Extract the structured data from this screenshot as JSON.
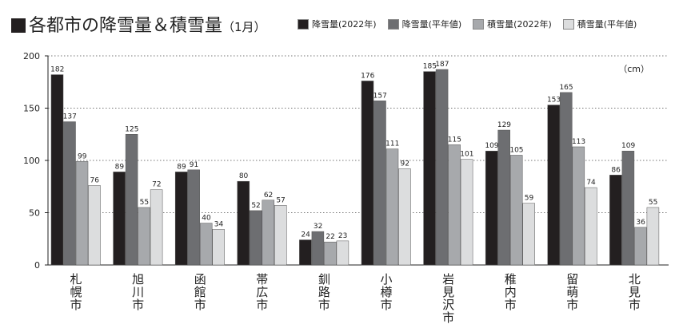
{
  "chart_data": {
    "type": "bar",
    "title": "各都市の降雪量＆積雪量",
    "subtitle": "（1月）",
    "unit": "（cm）",
    "ylim": [
      0,
      200
    ],
    "yticks": [
      0,
      50,
      100,
      150,
      200
    ],
    "grid": true,
    "legend_position": "top-right",
    "categories": [
      "札幌市",
      "旭川市",
      "函館市",
      "帯広市",
      "釧路市",
      "小樽市",
      "岩見沢市",
      "稚内市",
      "留萌市",
      "北見市"
    ],
    "series": [
      {
        "name": "降雪量(2022年)",
        "color": "#231f20",
        "values": [
          182,
          89,
          89,
          80,
          24,
          176,
          185,
          109,
          153,
          86
        ]
      },
      {
        "name": "降雪量(平年値)",
        "color": "#6d6e71",
        "values": [
          137,
          125,
          91,
          52,
          32,
          157,
          187,
          129,
          165,
          109
        ]
      },
      {
        "name": "積雪量(2022年)",
        "color": "#a7a9ac",
        "values": [
          99,
          55,
          40,
          62,
          22,
          111,
          115,
          105,
          113,
          36
        ]
      },
      {
        "name": "積雪量(平年値)",
        "color": "#dcddde",
        "values": [
          76,
          72,
          34,
          57,
          23,
          92,
          101,
          59,
          74,
          55
        ]
      }
    ]
  }
}
